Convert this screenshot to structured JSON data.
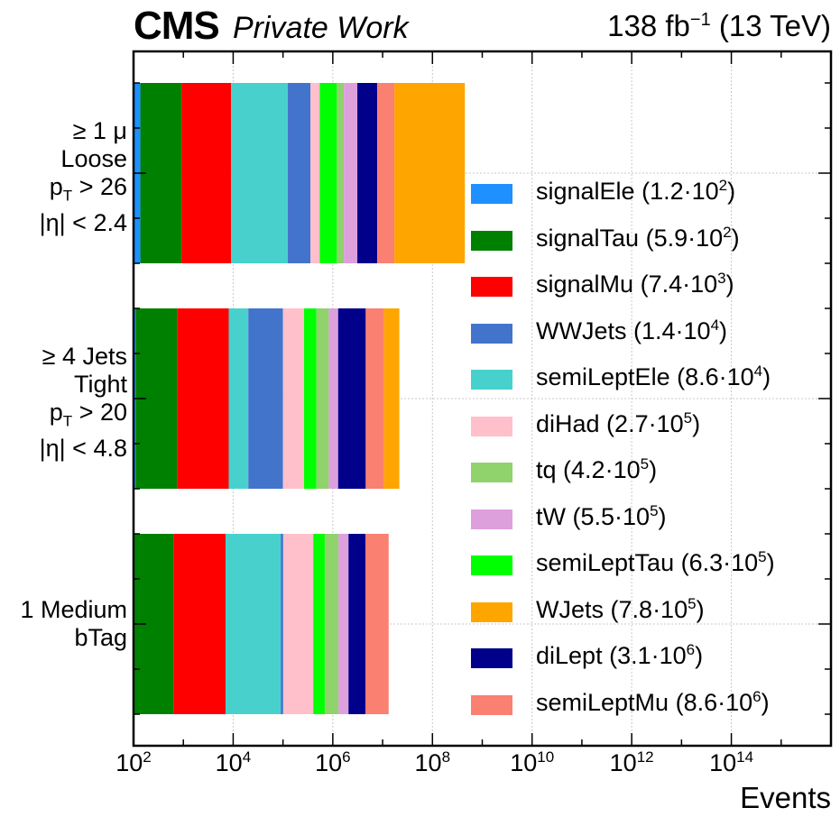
{
  "header": {
    "experiment": "CMS",
    "extra": "Private Work",
    "lumi_value": "138 fb",
    "lumi_exp": "−1",
    "energy": " (13 TeV)"
  },
  "chart_data": {
    "type": "bar",
    "orientation": "horizontal",
    "stacked": true,
    "xscale": "log",
    "xlim": [
      100,
      1e+16
    ],
    "xlabel": "Events",
    "grid": true,
    "legend_position": "right",
    "xticks": [
      {
        "base": "10",
        "exp": "2"
      },
      {
        "base": "10",
        "exp": "4"
      },
      {
        "base": "10",
        "exp": "6"
      },
      {
        "base": "10",
        "exp": "8"
      },
      {
        "base": "10",
        "exp": "10"
      },
      {
        "base": "10",
        "exp": "12"
      },
      {
        "base": "10",
        "exp": "14"
      }
    ],
    "categories": [
      {
        "lines": [
          {
            "text": "≥ 1 μ"
          },
          {
            "text": "Loose"
          },
          {
            "text": "p",
            "sub": "T",
            "tail": " > 26"
          },
          {
            "text": "|η| < 2.4"
          }
        ]
      },
      {
        "lines": [
          {
            "text": "≥ 4 Jets"
          },
          {
            "text": "Tight"
          },
          {
            "text": "p",
            "sub": "T",
            "tail": " > 20"
          },
          {
            "text": "|η| < 4.8"
          }
        ]
      },
      {
        "lines": [
          {
            "text": "1 Medium"
          },
          {
            "text": "bTag"
          }
        ]
      }
    ],
    "series": [
      {
        "name": "signalEle",
        "total_mant": "1.2",
        "total_exp": "2",
        "color": "#1e90ff",
        "values": [
          37,
          10,
          5
        ]
      },
      {
        "name": "signalTau",
        "total_mant": "5.9",
        "total_exp": "2",
        "color": "#008000",
        "values": [
          780,
          640,
          530
        ]
      },
      {
        "name": "signalMu",
        "total_mant": "7.4",
        "total_exp": "3",
        "color": "#ff0000",
        "values": [
          8200,
          7400,
          6400
        ]
      },
      {
        "name": "semiLeptEle",
        "total_mant": "8.6",
        "total_exp": "4",
        "color": "#48d1cc",
        "values": [
          116000,
          12000,
          83000
        ]
      },
      {
        "name": "WWJets",
        "total_mant": "1.4",
        "total_exp": "4",
        "color": "#4374cc",
        "values": [
          232000,
          80000,
          11000
        ]
      },
      {
        "name": "diHad",
        "total_mant": "2.7",
        "total_exp": "5",
        "color": "#ffc0cb",
        "values": [
          190000,
          165000,
          304000
        ]
      },
      {
        "name": "semiLeptTau",
        "total_mant": "6.3",
        "total_exp": "5",
        "color": "#00ff00",
        "values": [
          660000,
          205000,
          285000
        ]
      },
      {
        "name": "tq",
        "total_mant": "4.2",
        "total_exp": "5",
        "color": "#90d26b",
        "values": [
          460000,
          360000,
          605000
        ]
      },
      {
        "name": "tW",
        "total_mant": "5.5",
        "total_exp": "5",
        "color": "#dda0dd",
        "values": [
          1440000,
          450000,
          770000
        ]
      },
      {
        "name": "diLept",
        "total_mant": "3.1",
        "total_exp": "6",
        "color": "#00008b",
        "values": [
          4700000,
          3300000,
          2450000
        ]
      },
      {
        "name": "semiLeptMu",
        "total_mant": "8.6",
        "total_exp": "6",
        "color": "#fa8072",
        "values": [
          9400000,
          6100000,
          8700000
        ]
      },
      {
        "name": "WJets",
        "total_mant": "7.8",
        "total_exp": "5",
        "color": "#ffa500",
        "values": [
          430000000,
          11000000,
          0
        ]
      }
    ],
    "legend_order": [
      "signalEle",
      "signalTau",
      "signalMu",
      "WWJets",
      "semiLeptEle",
      "diHad",
      "tq",
      "tW",
      "semiLeptTau",
      "WJets",
      "diLept",
      "semiLeptMu"
    ]
  }
}
